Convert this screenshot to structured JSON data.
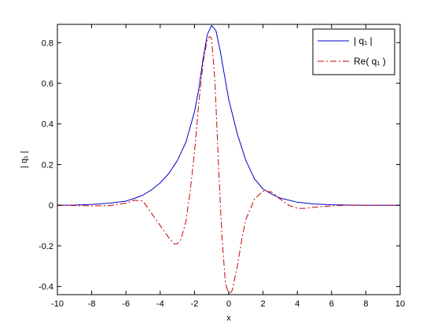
{
  "chart_data": {
    "type": "line",
    "title": "",
    "xlabel": "x",
    "ylabel": "| q₁ |",
    "xlim": [
      -10,
      10
    ],
    "ylim": [
      -0.44,
      0.89
    ],
    "xticks": [
      -10,
      -8,
      -6,
      -4,
      -2,
      0,
      2,
      4,
      6,
      8,
      10
    ],
    "xtick_labels": [
      "-10",
      "-8",
      "-6",
      "-4",
      "-2",
      "0",
      "2",
      "4",
      "6",
      "8",
      "10"
    ],
    "yticks": [
      -0.4,
      -0.2,
      0,
      0.2,
      0.4,
      0.6,
      0.8
    ],
    "ytick_labels": [
      "-0.4",
      "-0.2",
      "0",
      "0.2",
      "0.4",
      "0.6",
      "0.8"
    ],
    "grid": false,
    "legend_position": "top-right",
    "series": [
      {
        "name": "| q₁ |",
        "color": "#0000cc",
        "style": "solid",
        "x": [
          -10,
          -9,
          -8,
          -7,
          -6,
          -5.5,
          -5,
          -4.5,
          -4,
          -3.5,
          -3,
          -2.5,
          -2,
          -1.75,
          -1.5,
          -1.25,
          -1,
          -0.75,
          -0.5,
          -0.25,
          0,
          0.5,
          1,
          1.5,
          2,
          2.5,
          3,
          4,
          5,
          6,
          7,
          8,
          10
        ],
        "y": [
          0,
          0.001,
          0.004,
          0.01,
          0.02,
          0.034,
          0.05,
          0.076,
          0.11,
          0.156,
          0.22,
          0.31,
          0.46,
          0.57,
          0.72,
          0.84,
          0.885,
          0.86,
          0.76,
          0.64,
          0.52,
          0.35,
          0.22,
          0.13,
          0.08,
          0.055,
          0.035,
          0.015,
          0.006,
          0.002,
          0.001,
          0,
          0
        ]
      },
      {
        "name": "Re( q₁ )",
        "color": "#cc0000",
        "style": "dashdot",
        "x": [
          -10,
          -8,
          -7,
          -6,
          -5.5,
          -5,
          -4.5,
          -4,
          -3.5,
          -3.2,
          -3,
          -2.8,
          -2.5,
          -2.25,
          -2,
          -1.75,
          -1.5,
          -1.25,
          -1.1,
          -1,
          -0.8,
          -0.6,
          -0.4,
          -0.2,
          0,
          0.2,
          0.5,
          0.8,
          1,
          1.5,
          2,
          2.5,
          3,
          3.5,
          4,
          4.5,
          5,
          6,
          7,
          8,
          10
        ],
        "y": [
          0,
          -0.003,
          -0.002,
          0.01,
          0.025,
          0.02,
          -0.04,
          -0.1,
          -0.16,
          -0.19,
          -0.19,
          -0.17,
          -0.08,
          0.07,
          0.26,
          0.5,
          0.7,
          0.82,
          0.83,
          0.82,
          0.6,
          0.2,
          -0.15,
          -0.38,
          -0.44,
          -0.42,
          -0.3,
          -0.15,
          -0.07,
          0.03,
          0.07,
          0.065,
          0.03,
          0.0,
          -0.015,
          -0.015,
          -0.01,
          -0.003,
          0,
          0,
          0
        ]
      }
    ]
  }
}
